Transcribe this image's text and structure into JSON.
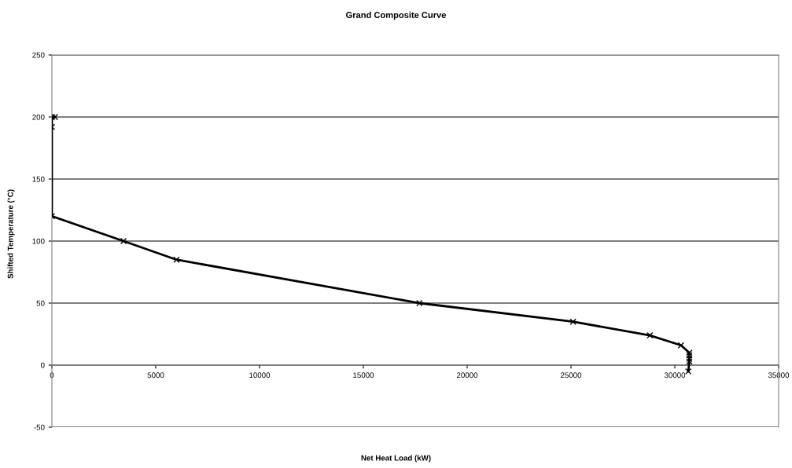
{
  "chart_data": {
    "type": "line",
    "title": "Grand Composite Curve",
    "xlabel": "Net Heat Load (kW)",
    "ylabel": "Shifted Temperature (°C)",
    "series": [
      {
        "color": "#000000",
        "x": [
          150,
          0,
          0,
          0,
          3450,
          6000,
          17700,
          25100,
          28800,
          30300,
          30700,
          30700,
          30700,
          30700,
          30650
        ],
        "values": [
          200,
          200,
          192,
          120,
          100,
          85,
          50,
          35,
          24,
          16,
          10,
          8,
          5,
          3,
          -5
        ]
      }
    ],
    "xlim": [
      0,
      35000
    ],
    "xticks": [
      0,
      5000,
      10000,
      15000,
      20000,
      25000,
      30000,
      35000
    ],
    "ylim": [
      -50,
      250
    ],
    "yticks": [
      -50,
      0,
      50,
      100,
      150,
      200,
      250
    ],
    "grid": "y",
    "marker": "cross",
    "line_style": "solid"
  }
}
